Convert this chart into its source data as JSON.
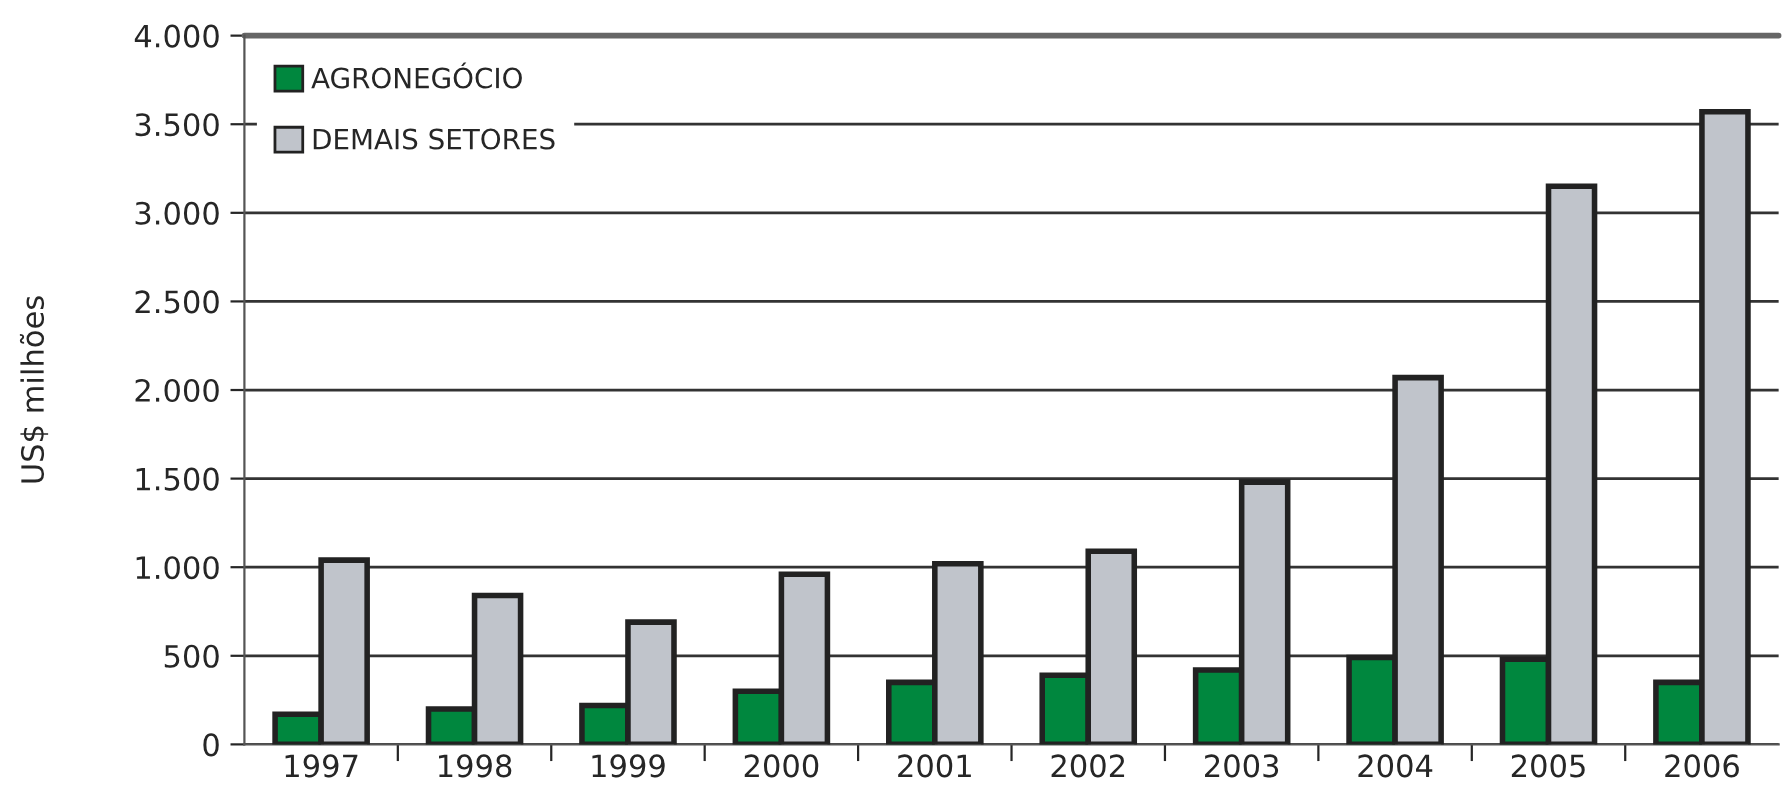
{
  "chart_data": {
    "type": "bar",
    "ylabel": "US$ milhões",
    "categories": [
      "1997",
      "1998",
      "1999",
      "2000",
      "2001",
      "2002",
      "2003",
      "2004",
      "2005",
      "2006"
    ],
    "series": [
      {
        "name": "AGRONEGÓCIO",
        "color": "#00873e",
        "values": [
          170,
          200,
          220,
          300,
          350,
          390,
          420,
          490,
          480,
          350
        ]
      },
      {
        "name": "DEMAIS SETORES",
        "color": "#c0c4cb",
        "values": [
          1040,
          840,
          690,
          960,
          1020,
          1090,
          1480,
          2070,
          3150,
          3570
        ]
      }
    ],
    "ylim": [
      0,
      4000
    ],
    "yticks": [
      0,
      500,
      {
        "value": 1000,
        "label": "1.000"
      },
      {
        "value": 1500,
        "label": "1.500"
      },
      {
        "value": 2000,
        "label": "2.000"
      },
      {
        "value": 2500,
        "label": "2.500"
      },
      {
        "value": 3000,
        "label": "3.000"
      },
      {
        "value": 3500,
        "label": "3.500"
      },
      {
        "value": 4000,
        "label": "4.000"
      }
    ],
    "grid": "y",
    "legend": "top left"
  }
}
